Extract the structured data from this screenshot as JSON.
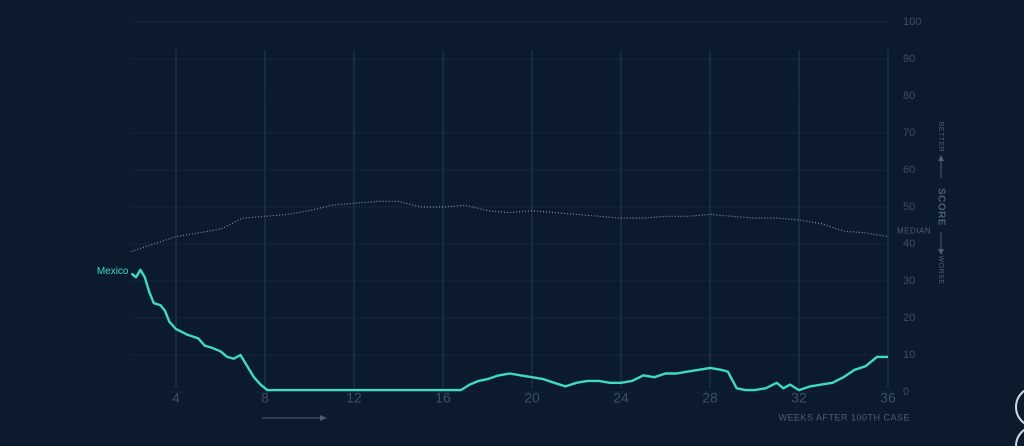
{
  "chart_data": {
    "type": "line",
    "x_label": "WEEKS AFTER 100TH CASE",
    "axis_label": "SCORE",
    "better_label": "BETTER",
    "worse_label": "WORSE",
    "xlim": [
      2,
      36
    ],
    "ylim": [
      0,
      100
    ],
    "xticks": [
      4,
      8,
      12,
      16,
      20,
      24,
      28,
      32,
      36
    ],
    "yticks": [
      0,
      10,
      20,
      30,
      40,
      50,
      60,
      70,
      80,
      90,
      100
    ],
    "grid": true,
    "series": [
      {
        "name": "Mexico",
        "color": "#3fd9c6",
        "style": "solid",
        "x": [
          2.0,
          2.2,
          2.4,
          2.6,
          2.8,
          3.0,
          3.3,
          3.5,
          3.7,
          4.0,
          4.5,
          5.0,
          5.3,
          5.6,
          6.0,
          6.3,
          6.6,
          6.9,
          7.2,
          7.5,
          7.8,
          8.1,
          10,
          12,
          14,
          16,
          16.8,
          17.2,
          17.6,
          18.0,
          18.5,
          19.0,
          19.5,
          20.0,
          20.5,
          21.0,
          21.5,
          22.0,
          22.5,
          23.0,
          23.5,
          24.0,
          24.5,
          25.0,
          25.5,
          26.0,
          26.5,
          27.0,
          27.5,
          28.0,
          28.5,
          28.8,
          29.2,
          29.6,
          30.0,
          30.5,
          31.0,
          31.3,
          31.6,
          32.0,
          32.5,
          33.0,
          33.5,
          34.0,
          34.5,
          35.0,
          35.5,
          36.0
        ],
        "values": [
          32,
          31,
          33,
          31,
          27,
          24,
          23.5,
          22,
          19,
          17,
          15.5,
          14.5,
          12.5,
          12,
          11,
          9.5,
          9,
          10,
          7,
          4,
          2,
          0.5,
          0.5,
          0.5,
          0.5,
          0.5,
          0.5,
          2,
          3,
          3.5,
          4.5,
          5,
          4.5,
          4,
          3.5,
          2.5,
          1.5,
          2.5,
          3,
          3,
          2.5,
          2.5,
          3,
          4.5,
          4,
          5,
          5,
          5.5,
          6,
          6.5,
          6,
          5.5,
          1,
          0.5,
          0.5,
          1,
          2.5,
          1,
          2,
          0.5,
          1.5,
          2,
          2.5,
          4,
          6,
          7,
          9.5,
          9.5
        ]
      },
      {
        "name": "MEDIAN",
        "color": "#8593a3",
        "style": "dotted",
        "x": [
          2,
          3,
          4,
          5,
          6,
          7,
          8,
          9,
          10,
          11,
          12,
          13,
          14,
          15,
          16,
          17,
          18,
          19,
          20,
          21,
          22,
          23,
          24,
          25,
          26,
          27,
          28,
          29,
          30,
          31,
          32,
          33,
          34,
          35,
          36
        ],
        "values": [
          38,
          40,
          42,
          43,
          44,
          47,
          47.5,
          48,
          49,
          50.5,
          51,
          51.5,
          51.5,
          50,
          50,
          50.5,
          49,
          48.5,
          49,
          48.5,
          48,
          47.5,
          47,
          47,
          47.5,
          47.5,
          48,
          47.5,
          47,
          47,
          46.5,
          45.5,
          43.5,
          43,
          42
        ]
      }
    ]
  }
}
